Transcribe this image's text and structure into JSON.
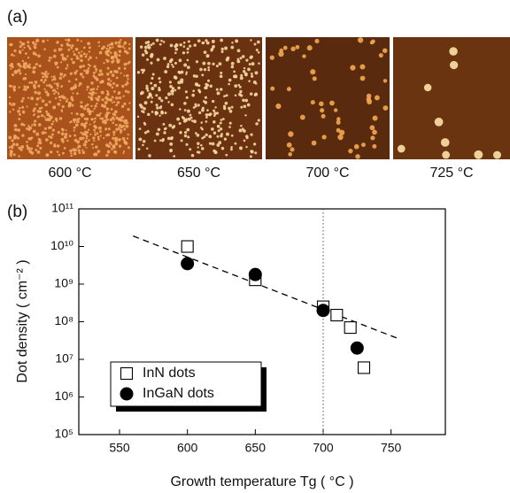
{
  "panel_a": {
    "label": "(a)",
    "captions": [
      "600 °C",
      "650 °C",
      "700 °C",
      "725 °C"
    ]
  },
  "chart_data": {
    "type": "scatter",
    "panel_label": "(b)",
    "x_label": "Growth temperature Tg ( °C )",
    "y_label": "Dot density ( cm⁻² )",
    "xlim": [
      520,
      790
    ],
    "xticks": [
      550,
      600,
      650,
      700,
      750
    ],
    "ylim": [
      100000,
      100000000000
    ],
    "log_y": true,
    "yticks": [
      {
        "value": 100000,
        "label": "10⁵"
      },
      {
        "value": 1000000,
        "label": "10⁶"
      },
      {
        "value": 10000000,
        "label": "10⁷"
      },
      {
        "value": 100000000,
        "label": "10⁸"
      },
      {
        "value": 1000000000,
        "label": "10⁹"
      },
      {
        "value": 10000000000,
        "label": "10¹⁰"
      },
      {
        "value": 100000000000,
        "label": "10¹¹"
      }
    ],
    "series": [
      {
        "name": "InN dots",
        "marker": "square",
        "filled": false,
        "color": "#000000",
        "x": [
          600,
          650,
          700,
          710,
          720,
          730
        ],
        "values": [
          10000000000,
          1300000000,
          250000000,
          150000000,
          70000000,
          6000000
        ]
      },
      {
        "name": "InGaN dots",
        "marker": "circle",
        "filled": true,
        "color": "#000000",
        "x": [
          600,
          650,
          700,
          725
        ],
        "values": [
          3500000000,
          1800000000,
          200000000,
          20000000
        ]
      }
    ],
    "fit_line": {
      "x": [
        560,
        755
      ],
      "values": [
        19000000000,
        36000000
      ]
    },
    "vline": 700,
    "legend": "lower left"
  }
}
